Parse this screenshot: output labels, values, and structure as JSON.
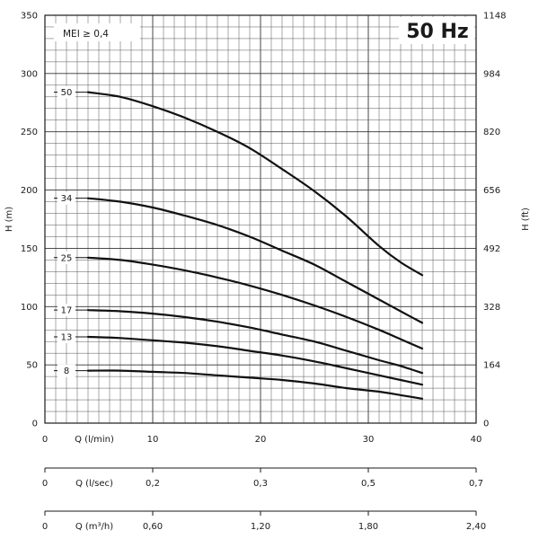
{
  "chart_data": {
    "type": "line",
    "title": "50 Hz",
    "annotation": "MEI ≥ 0,4",
    "ylabel": "H (m)",
    "ylabel_right": "H (ft)",
    "ylim": [
      0,
      350
    ],
    "yticks": [
      0,
      50,
      100,
      150,
      200,
      250,
      300,
      350
    ],
    "ylim_right": [
      0,
      1148
    ],
    "yticks_right": [
      "0",
      "164",
      "328",
      "492",
      "656",
      "820",
      "984",
      "1148"
    ],
    "xlabel": "Q (l/min)",
    "xlim": [
      0,
      40
    ],
    "xticks": [
      "0",
      "10",
      "20",
      "30",
      "40"
    ],
    "secondary_x_axes": [
      {
        "label": "Q (l/sec)",
        "ticks": [
          "0",
          "0,2",
          "0,3",
          "0,5",
          "0,7"
        ]
      },
      {
        "label": "Q (m³/h)",
        "ticks": [
          "0",
          "0,60",
          "1,20",
          "1,80",
          "2,40"
        ]
      }
    ],
    "grid": true,
    "series": [
      {
        "name": "50",
        "x": [
          4,
          7,
          10,
          13,
          16,
          19,
          22,
          25,
          28,
          31,
          33,
          35
        ],
        "y": [
          284,
          280,
          272,
          262,
          250,
          236,
          218,
          199,
          177,
          152,
          138,
          127
        ]
      },
      {
        "name": "34",
        "x": [
          4,
          7,
          10,
          13,
          16,
          19,
          22,
          25,
          28,
          31,
          33,
          35
        ],
        "y": [
          193,
          190,
          185,
          178,
          170,
          160,
          148,
          136,
          121,
          106,
          96,
          86
        ]
      },
      {
        "name": "25",
        "x": [
          4,
          7,
          10,
          13,
          16,
          19,
          22,
          25,
          28,
          31,
          33,
          35
        ],
        "y": [
          142,
          140,
          136,
          131,
          125,
          118,
          110,
          101,
          91,
          80,
          72,
          64
        ]
      },
      {
        "name": "17",
        "x": [
          4,
          7,
          10,
          13,
          16,
          19,
          22,
          25,
          28,
          31,
          33,
          35
        ],
        "y": [
          97,
          96,
          94,
          91,
          87,
          82,
          76,
          70,
          62,
          54,
          49,
          43
        ]
      },
      {
        "name": "13",
        "x": [
          4,
          7,
          10,
          13,
          16,
          19,
          22,
          25,
          28,
          31,
          33,
          35
        ],
        "y": [
          74,
          73,
          71,
          69,
          66,
          62,
          58,
          53,
          47,
          41,
          37,
          33
        ]
      },
      {
        "name": "8",
        "x": [
          4,
          7,
          10,
          13,
          16,
          19,
          22,
          25,
          28,
          31,
          33,
          35
        ],
        "y": [
          45,
          45,
          44,
          43,
          41,
          39,
          37,
          34,
          30,
          27,
          24,
          21
        ]
      }
    ]
  }
}
